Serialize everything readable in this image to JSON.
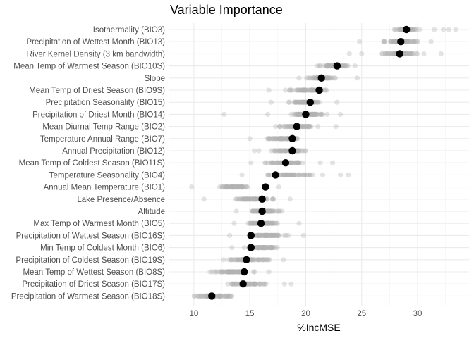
{
  "chart_data": {
    "type": "scatter",
    "title": "Variable Importance",
    "xlabel": "%IncMSE",
    "ylabel": "",
    "xlim": [
      7.8,
      34.6
    ],
    "xticks": [
      10,
      15,
      20,
      25,
      30
    ],
    "grid": true,
    "legend": "none",
    "colors": {
      "mean_point": "#000000",
      "replicate_points": "#b3b3b3"
    },
    "variables": [
      {
        "label": "Isothermality (BIO3)",
        "mean": 29.0,
        "min": 27.3,
        "max": 30.6,
        "outliers": [
          31.5,
          32.3,
          32.8,
          33.4
        ]
      },
      {
        "label": "Precipitation of Wettest Month (BIO13)",
        "mean": 28.5,
        "min": 26.3,
        "max": 30.6,
        "outliers": [
          24.8,
          31.2
        ]
      },
      {
        "label": "River Kernel Density (3 km bandwidth)",
        "mean": 28.4,
        "min": 26.3,
        "max": 30.8,
        "outliers": [
          23.9,
          25.0,
          32.1
        ]
      },
      {
        "label": "Mean Temp of Warmest Season (BIO10S)",
        "mean": 22.8,
        "min": 20.7,
        "max": 24.1,
        "outliers": [
          24.4
        ]
      },
      {
        "label": "Slope",
        "mean": 21.4,
        "min": 20.0,
        "max": 23.0,
        "outliers": [
          19.4,
          24.6
        ]
      },
      {
        "label": "Mean Temp of Driest Season (BIO9S)",
        "mean": 21.2,
        "min": 17.6,
        "max": 22.6,
        "outliers": [
          16.7
        ]
      },
      {
        "label": "Precipitation Seasonality (BIO15)",
        "mean": 20.4,
        "min": 18.2,
        "max": 22.0,
        "outliers": [
          16.9,
          22.8
        ]
      },
      {
        "label": "Precipitation of Driest Month (BIO14)",
        "mean": 20.0,
        "min": 17.8,
        "max": 22.4,
        "outliers": [
          12.7,
          16.6,
          23.1
        ]
      },
      {
        "label": "Mean Diurnal Temp Range (BIO2)",
        "mean": 19.2,
        "min": 17.0,
        "max": 21.5,
        "outliers": [
          22.7
        ]
      },
      {
        "label": "Temperature Annual Range (BIO7)",
        "mean": 18.8,
        "min": 16.0,
        "max": 20.0,
        "outliers": [
          15.0
        ]
      },
      {
        "label": "Annual Precipitation (BIO12)",
        "mean": 18.8,
        "min": 16.5,
        "max": 20.5,
        "outliers": [
          15.4,
          15.8
        ]
      },
      {
        "label": "Mean Temp of Coldest Season (BIO11S)",
        "mean": 18.2,
        "min": 16.0,
        "max": 20.4,
        "outliers": [
          15.1,
          21.3,
          22.4
        ]
      },
      {
        "label": "Temperature Seasonality (BIO4)",
        "mean": 17.3,
        "min": 14.9,
        "max": 22.0,
        "outliers": [
          14.3,
          23.1,
          23.8
        ]
      },
      {
        "label": "Annual Mean Temperature (BIO1)",
        "mean": 16.4,
        "min": 11.6,
        "max": 15.3,
        "outliers": [
          9.8,
          17.6
        ]
      },
      {
        "label": "Lake Presence/Absence",
        "mean": 16.1,
        "min": 12.4,
        "max": 17.8,
        "outliers": [
          10.9,
          18.6
        ]
      },
      {
        "label": "Altitude",
        "mean": 16.1,
        "min": 14.3,
        "max": 18.2,
        "outliers": [
          13.8
        ]
      },
      {
        "label": "Max Temp of Warmest Month (BIO5)",
        "mean": 16.0,
        "min": 14.2,
        "max": 18.1,
        "outliers": [
          13.6,
          19.4
        ]
      },
      {
        "label": "Precipitation of Wettest Season (BIO16S)",
        "mean": 15.1,
        "min": 14.0,
        "max": 19.3,
        "outliers": [
          13.2,
          19.8
        ]
      },
      {
        "label": "Min Temp of Coldest Month (BIO6)",
        "mean": 15.1,
        "min": 14.2,
        "max": 18.0,
        "outliers": [
          13.4
        ]
      },
      {
        "label": "Precipitation of Coldest Season (BIO19S)",
        "mean": 14.7,
        "min": 12.1,
        "max": 17.5,
        "outliers": [
          18.0
        ]
      },
      {
        "label": "Mean Temp of Wettest Season (BIO8S)",
        "mean": 14.5,
        "min": 10.9,
        "max": 15.8,
        "outliers": [
          16.7
        ]
      },
      {
        "label": "Precipitation of Driest Season (BIO17S)",
        "mean": 14.4,
        "min": 12.7,
        "max": 17.0,
        "outliers": [
          18.1,
          18.7
        ]
      },
      {
        "label": "Precipitation of Warmest Season (BIO18S)",
        "mean": 11.6,
        "min": 9.4,
        "max": 14.2,
        "outliers": []
      }
    ]
  }
}
